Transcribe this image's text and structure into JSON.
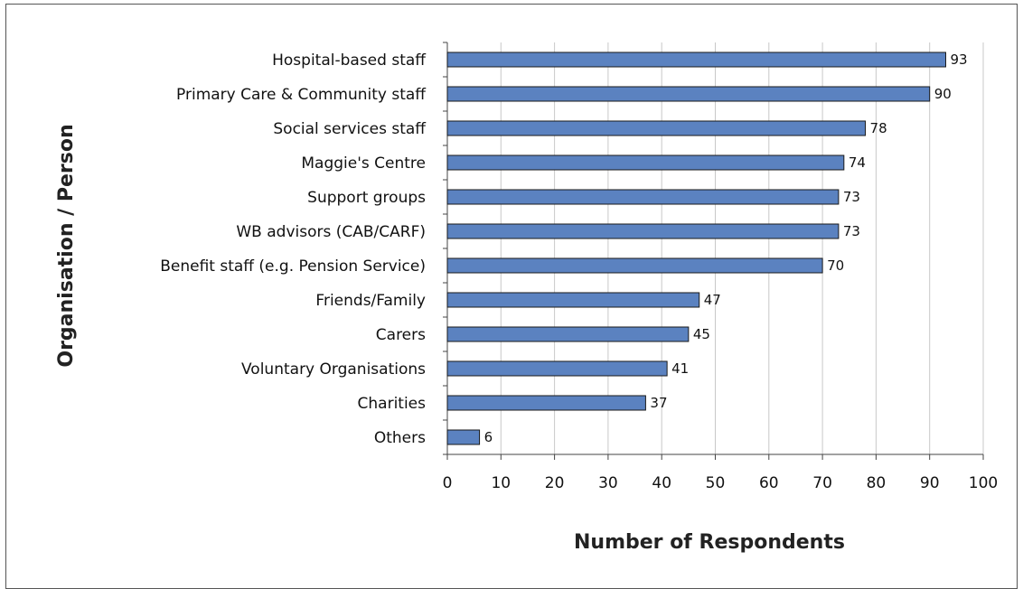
{
  "chart_data": {
    "type": "bar",
    "orientation": "horizontal",
    "categories": [
      "Hospital-based staff",
      "Primary Care & Community staff",
      "Social services staff",
      "Maggie's Centre",
      "Support groups",
      "WB advisors (CAB/CARF)",
      "Benefit staff (e.g. Pension Service)",
      "Friends/Family",
      "Carers",
      "Voluntary Organisations",
      "Charities",
      "Others"
    ],
    "values": [
      93,
      90,
      78,
      74,
      73,
      73,
      70,
      47,
      45,
      41,
      37,
      6
    ],
    "xlabel": "Number of Respondents",
    "ylabel": "Organisation / Person",
    "xlim": [
      0,
      100
    ],
    "xticks": [
      "0",
      "10",
      "20",
      "30",
      "40",
      "50",
      "60",
      "70",
      "80",
      "90",
      "100"
    ],
    "grid": true,
    "data_labels": true,
    "colors": {
      "bar": "#5b82c0",
      "bar_outline": "#1a1a1a",
      "grid": "#c8c8c8",
      "axis": "#444444"
    }
  }
}
